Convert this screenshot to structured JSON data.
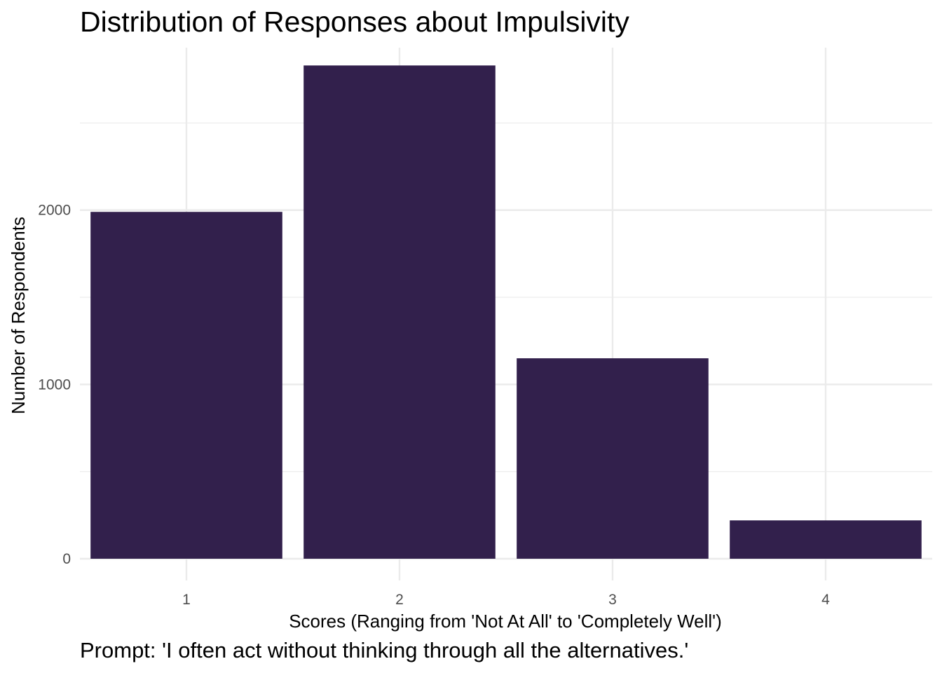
{
  "chart_data": {
    "type": "bar",
    "title": "Distribution of Responses about Impulsivity",
    "caption": "Prompt: 'I often act without thinking through all the alternatives.'",
    "xlabel": "Scores (Ranging from 'Not At All' to 'Completely Well')",
    "ylabel": "Number of Respondents",
    "categories": [
      "1",
      "2",
      "3",
      "4"
    ],
    "values": [
      1990,
      2830,
      1150,
      220
    ],
    "ylim": [
      0,
      2920
    ],
    "yticks": [
      0,
      1000,
      2000
    ],
    "yticks_minor": [
      500,
      1500,
      2500
    ],
    "ytick_labels": [
      "0",
      "1000",
      "2000"
    ],
    "grid": true,
    "bar_color": "#32204c",
    "grid_color": "#ebebeb",
    "tick_label_color": "#4d4d4d"
  }
}
